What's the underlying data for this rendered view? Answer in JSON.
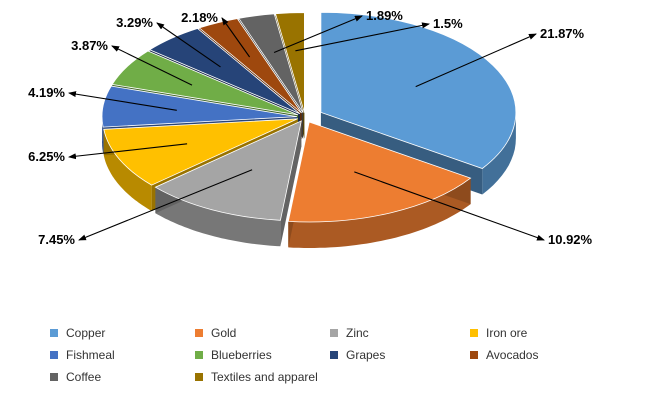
{
  "chart_data": {
    "type": "pie",
    "style": "3d-exploded",
    "title": "",
    "labels": [
      "Copper",
      "Gold",
      "Zinc",
      "Iron ore",
      "Fishmeal",
      "Blueberries",
      "Grapes",
      "Avocados",
      "Coffee",
      "Textiles and apparel"
    ],
    "values": [
      21.87,
      10.92,
      7.45,
      6.25,
      4.19,
      3.87,
      3.29,
      2.18,
      1.89,
      1.5
    ],
    "value_labels": [
      "21.87%",
      "10.92%",
      "7.45%",
      "6.25%",
      "4.19%",
      "3.87%",
      "3.29%",
      "2.18%",
      "1.89%",
      "1.5%"
    ],
    "colors": [
      "#5B9BD5",
      "#ED7D31",
      "#A5A5A5",
      "#FFC000",
      "#4472C4",
      "#70AD47",
      "#264478",
      "#9E480E",
      "#636363",
      "#997300"
    ],
    "legend_position": "bottom",
    "grid": false
  }
}
